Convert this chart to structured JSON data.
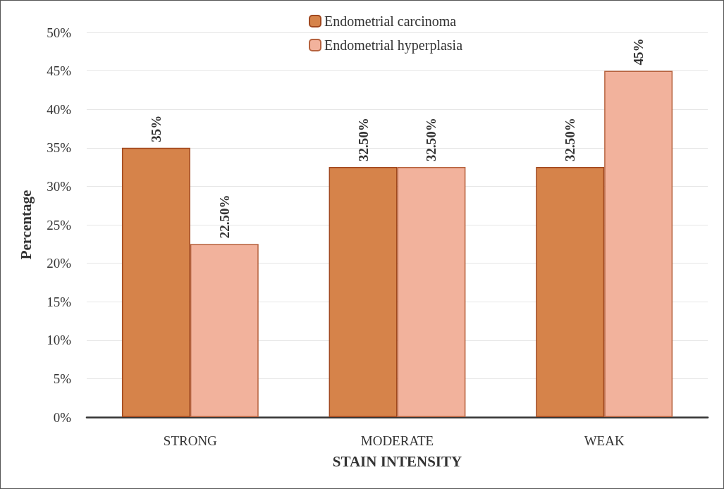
{
  "chart_data": {
    "type": "bar",
    "xlabel": "STAIN INTENSITY",
    "ylabel": "Percentage",
    "categories": [
      "STRONG",
      "MODERATE",
      "WEAK"
    ],
    "series": [
      {
        "name": "Endometrial carcinoma",
        "color": "#d6834a",
        "values": [
          35,
          32.5,
          32.5
        ],
        "value_labels": [
          "35%",
          "32.50%",
          "32.50%"
        ]
      },
      {
        "name": "Endometrial hyperplasia",
        "color": "#f2b29c",
        "values": [
          22.5,
          32.5,
          45
        ],
        "value_labels": [
          "22.50%",
          "32.50%",
          "45%"
        ]
      }
    ],
    "ylim": [
      0,
      50
    ],
    "yticks": [
      {
        "value": 0,
        "label": "0%"
      },
      {
        "value": 5,
        "label": "5%"
      },
      {
        "value": 10,
        "label": "10%"
      },
      {
        "value": 15,
        "label": "15%"
      },
      {
        "value": 20,
        "label": "20%"
      },
      {
        "value": 25,
        "label": "25%"
      },
      {
        "value": 30,
        "label": "30%"
      },
      {
        "value": 35,
        "label": "35%"
      },
      {
        "value": 40,
        "label": "40%"
      },
      {
        "value": 45,
        "label": "45%"
      },
      {
        "value": 50,
        "label": "50%"
      }
    ],
    "grid": "y",
    "legend": "top"
  }
}
